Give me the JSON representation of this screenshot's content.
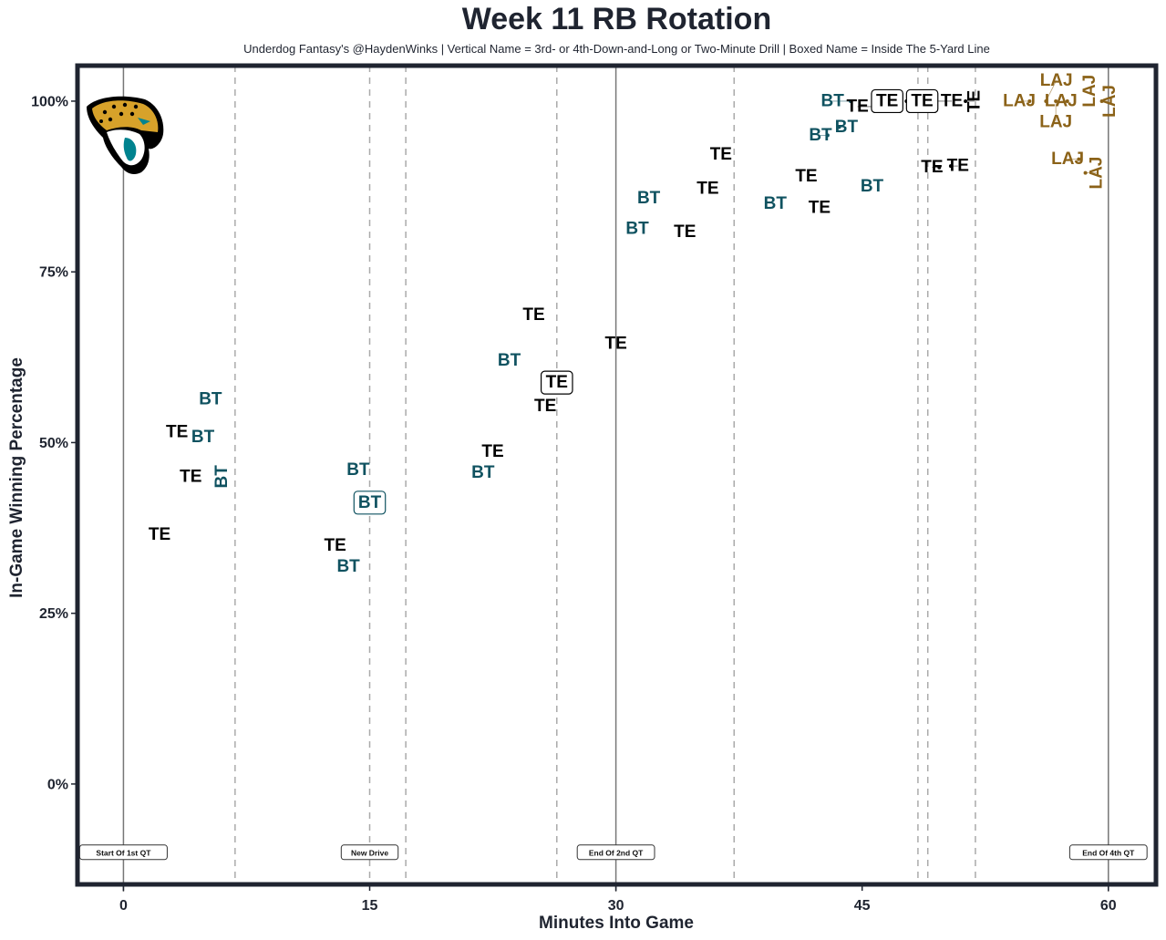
{
  "title": "Week 11 RB Rotation",
  "subtitle": "Underdog Fantasy's @HaydenWinks | Vertical Name = 3rd- or 4th-Down-and-Long or Two-Minute Drill | Boxed Name = Inside The 5-Yard Line",
  "logo": "jacksonville-jaguars-logo",
  "chart_data": {
    "type": "scatter",
    "title": "Week 11 RB Rotation",
    "xlabel": "Minutes Into Game",
    "ylabel": "In-Game Winning Percentage",
    "xlim": [
      -2.8,
      62.9
    ],
    "ylim": [
      -14.7,
      105.2
    ],
    "xticks": [
      {
        "v": 0,
        "label": "0"
      },
      {
        "v": 15,
        "label": "15"
      },
      {
        "v": 30,
        "label": "30"
      },
      {
        "v": 45,
        "label": "45"
      },
      {
        "v": 60,
        "label": "60"
      }
    ],
    "yticks": [
      {
        "v": 0,
        "label": "0%"
      },
      {
        "v": 25,
        "label": "25%"
      },
      {
        "v": 50,
        "label": "50%"
      },
      {
        "v": 75,
        "label": "75%"
      },
      {
        "v": 100,
        "label": "100%"
      }
    ],
    "grid": false,
    "colors": {
      "TE": "#000000",
      "BT": "#0f5260",
      "LAJ": "#8b6218",
      "frame": "#1f2430"
    },
    "quarter_lines": [
      0,
      30,
      60
    ],
    "drive_lines": [
      6.8,
      15.0,
      17.2,
      26.4,
      37.2,
      48.4,
      49.0,
      51.9
    ],
    "annotations": [
      {
        "x": 0,
        "y": -10,
        "text": "Start Of 1st QT"
      },
      {
        "x": 15,
        "y": -10,
        "text": "New Drive"
      },
      {
        "x": 30,
        "y": -10,
        "text": "End Of 2nd QT"
      },
      {
        "x": 60,
        "y": -10,
        "text": "End Of 4th QT"
      }
    ],
    "points": [
      {
        "x": 2.2,
        "y": 36.5,
        "label": "TE",
        "vertical": false,
        "boxed": false
      },
      {
        "x": 3.4,
        "y": 51.5,
        "label": "TE",
        "vertical": false,
        "boxed": false
      },
      {
        "x": 4.1,
        "y": 45.0,
        "label": "TE",
        "vertical": false,
        "boxed": false
      },
      {
        "x": 4.7,
        "y": 50.8,
        "label": "BT",
        "vertical": false,
        "boxed": false
      },
      {
        "x": 5.3,
        "y": 56.3,
        "label": "BT",
        "vertical": false,
        "boxed": false
      },
      {
        "x": 6.0,
        "y": 45.0,
        "label": "BT",
        "vertical": true,
        "boxed": false
      },
      {
        "x": 12.9,
        "y": 34.5,
        "label": "TE",
        "vertical": false,
        "boxed": false
      },
      {
        "x": 13.7,
        "y": 32.3,
        "label": "BT",
        "vertical": false,
        "boxed": false
      },
      {
        "x": 14.3,
        "y": 46.0,
        "label": "BT",
        "vertical": false,
        "boxed": false
      },
      {
        "x": 15.0,
        "y": 41.2,
        "label": "BT",
        "vertical": false,
        "boxed": true
      },
      {
        "x": 21.9,
        "y": 46.3,
        "label": "BT",
        "vertical": false,
        "boxed": false
      },
      {
        "x": 22.5,
        "y": 48.0,
        "label": "TE",
        "vertical": false,
        "boxed": false
      },
      {
        "x": 23.5,
        "y": 62.0,
        "label": "BT",
        "vertical": false,
        "boxed": false
      },
      {
        "x": 25.0,
        "y": 68.7,
        "label": "TE",
        "vertical": false,
        "boxed": false
      },
      {
        "x": 25.7,
        "y": 55.8,
        "label": "TE",
        "vertical": false,
        "boxed": false
      },
      {
        "x": 26.4,
        "y": 58.3,
        "label": "TE",
        "vertical": false,
        "boxed": true
      },
      {
        "x": 30.0,
        "y": 64.5,
        "label": "TE",
        "vertical": false,
        "boxed": false
      },
      {
        "x": 31.3,
        "y": 81.3,
        "label": "BT",
        "vertical": false,
        "boxed": false
      },
      {
        "x": 32.0,
        "y": 85.8,
        "label": "BT",
        "vertical": false,
        "boxed": false
      },
      {
        "x": 34.2,
        "y": 80.8,
        "label": "TE",
        "vertical": false,
        "boxed": false
      },
      {
        "x": 35.6,
        "y": 87.2,
        "label": "TE",
        "vertical": false,
        "boxed": false
      },
      {
        "x": 36.4,
        "y": 92.2,
        "label": "TE",
        "vertical": false,
        "boxed": false
      },
      {
        "x": 39.7,
        "y": 85.0,
        "label": "BT",
        "vertical": false,
        "boxed": false
      },
      {
        "x": 41.6,
        "y": 89.0,
        "label": "TE",
        "vertical": false,
        "boxed": false
      },
      {
        "x": 42.4,
        "y": 84.4,
        "label": "TE",
        "vertical": false,
        "boxed": false
      },
      {
        "x": 42.9,
        "y": 95.0,
        "label": "BT",
        "vertical": false,
        "boxed": false
      },
      {
        "x": 43.6,
        "y": 96.2,
        "label": "BT",
        "vertical": false,
        "boxed": false
      },
      {
        "x": 44.3,
        "y": 100.0,
        "label": "BT",
        "vertical": false,
        "boxed": false
      },
      {
        "x": 45.6,
        "y": 87.5,
        "label": "BT",
        "vertical": false,
        "boxed": false
      },
      {
        "x": 46.3,
        "y": 99.2,
        "label": "TE",
        "vertical": false,
        "boxed": false
      },
      {
        "x": 46.9,
        "y": 100.0,
        "label": "TE",
        "vertical": false,
        "boxed": true
      },
      {
        "x": 47.7,
        "y": 100.0,
        "label": "TE",
        "vertical": false,
        "boxed": true
      },
      {
        "x": 48.9,
        "y": 100.0,
        "label": "TE",
        "vertical": false,
        "boxed": false
      },
      {
        "x": 49.7,
        "y": 90.3,
        "label": "TE",
        "vertical": false,
        "boxed": false
      },
      {
        "x": 50.4,
        "y": 90.5,
        "label": "TE",
        "vertical": false,
        "boxed": false
      },
      {
        "x": 51.3,
        "y": 100.0,
        "label": "TE",
        "vertical": true,
        "boxed": false
      },
      {
        "x": 55.2,
        "y": 100.0,
        "label": "LAJ",
        "vertical": false,
        "boxed": false
      },
      {
        "x": 56.2,
        "y": 100.0,
        "label": "LAJ",
        "vertical": false,
        "boxed": false
      },
      {
        "x": 56.8,
        "y": 100.0,
        "label": "LAJ",
        "vertical": false,
        "boxed": false
      },
      {
        "x": 57.5,
        "y": 100.0,
        "label": "LAJ",
        "vertical": false,
        "boxed": false
      },
      {
        "x": 58.2,
        "y": 91.5,
        "label": "LAJ",
        "vertical": false,
        "boxed": false
      },
      {
        "x": 58.6,
        "y": 89.5,
        "label": "LAJ",
        "vertical": true,
        "boxed": false
      },
      {
        "x": 59.0,
        "y": 101.5,
        "label": "LAJ",
        "vertical": true,
        "boxed": false
      },
      {
        "x": 59.6,
        "y": 100.0,
        "label": "LAJ",
        "vertical": true,
        "boxed": false
      }
    ]
  }
}
